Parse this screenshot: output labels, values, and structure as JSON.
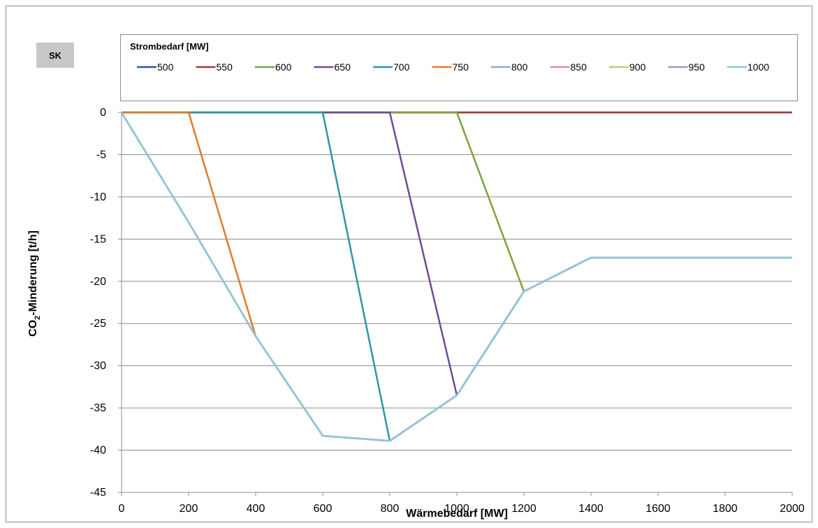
{
  "badge": "SK",
  "chart_data": {
    "type": "line",
    "xlabel": "Wärmebedarf [MW]",
    "ylabel_main": "CO",
    "ylabel_sub": "2",
    "ylabel_rest": "-Minderung [t/h]",
    "xlim": [
      0,
      2000
    ],
    "ylim": [
      -45,
      0
    ],
    "x_ticks": [
      0,
      200,
      400,
      600,
      800,
      1000,
      1200,
      1400,
      1600,
      1800,
      2000
    ],
    "y_ticks": [
      0,
      -5,
      -10,
      -15,
      -20,
      -25,
      -30,
      -35,
      -40,
      -45
    ],
    "grid": "horizontal",
    "legend": {
      "title": "Strombedarf [MW]",
      "placement": "top"
    },
    "x": [
      0,
      200,
      400,
      600,
      800,
      1000,
      1200,
      1400,
      1600,
      1800,
      2000
    ],
    "series": [
      {
        "name": "500",
        "color": "#2f5597",
        "values": [
          0,
          0,
          0,
          0,
          0,
          0,
          0,
          0,
          0,
          0,
          0
        ]
      },
      {
        "name": "550",
        "color": "#a33a3a",
        "values": [
          0,
          0,
          0,
          0,
          0,
          0,
          0,
          0,
          0,
          0,
          0
        ]
      },
      {
        "name": "600",
        "color": "#7ea23c",
        "values": [
          0,
          0,
          0,
          0,
          0,
          0,
          -21.2,
          -17.2,
          -17.2,
          -17.2,
          -17.2
        ]
      },
      {
        "name": "650",
        "color": "#6e4b96",
        "values": [
          0,
          0,
          0,
          0,
          0,
          -33.5,
          -21.2,
          -17.2,
          -17.2,
          -17.2,
          -17.2
        ]
      },
      {
        "name": "700",
        "color": "#2e95a8",
        "values": [
          0,
          0,
          0,
          0,
          -38.9,
          -33.5,
          -21.2,
          -17.2,
          -17.2,
          -17.2,
          -17.2
        ]
      },
      {
        "name": "750",
        "color": "#e07b2a",
        "values": [
          0,
          0,
          -26.5,
          -38.3,
          -38.9,
          -33.5,
          -21.2,
          -17.2,
          -17.2,
          -17.2,
          -17.2
        ]
      },
      {
        "name": "800",
        "color": "#8faad8",
        "values": [
          0,
          -13,
          -26.5,
          -38.3,
          -38.9,
          -33.5,
          -21.2,
          -17.2,
          -17.2,
          -17.2,
          -17.2
        ]
      },
      {
        "name": "850",
        "color": "#d99494",
        "values": [
          0,
          -13,
          -26.5,
          -38.3,
          -38.9,
          -33.5,
          -21.2,
          -17.2,
          -17.2,
          -17.2,
          -17.2
        ]
      },
      {
        "name": "900",
        "color": "#b5d17c",
        "values": [
          0,
          -13,
          -26.5,
          -38.3,
          -38.9,
          -33.5,
          -21.2,
          -17.2,
          -17.2,
          -17.2,
          -17.2
        ]
      },
      {
        "name": "950",
        "color": "#a693c4",
        "values": [
          0,
          -13,
          -26.5,
          -38.3,
          -38.9,
          -33.5,
          -21.2,
          -17.2,
          -17.2,
          -17.2,
          -17.2
        ]
      },
      {
        "name": "1000",
        "color": "#92c5d9",
        "values": [
          0,
          -13,
          -26.5,
          -38.3,
          -38.9,
          -33.5,
          -21.2,
          -17.2,
          -17.2,
          -17.2,
          -17.2
        ]
      }
    ]
  }
}
